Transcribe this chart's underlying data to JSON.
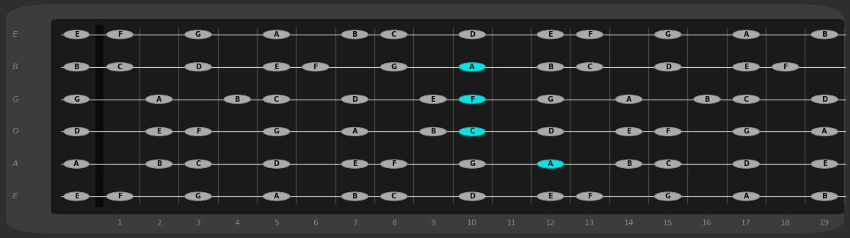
{
  "figsize": [
    12.01,
    3.37
  ],
  "dpi": 100,
  "bg_outer": "#2e2e2e",
  "bg_inner": "#252525",
  "fret_color": "#444444",
  "string_color": "#cccccc",
  "nut_color": "#0a0a0a",
  "dot_fill": "#aaaaaa",
  "dot_edge": "#888888",
  "cyan_fill": "#00e5e5",
  "cyan_edge": "#00aaaa",
  "text_color": "#111111",
  "label_color": "#888888",
  "n_frets": 19,
  "n_strings": 6,
  "string_names_left": [
    "E",
    "B",
    "G",
    "D",
    "A",
    "E"
  ],
  "strings_data": [
    [
      "E",
      "F",
      "",
      "G",
      "",
      "A",
      "",
      "B",
      "C",
      "",
      "D",
      "",
      "E",
      "F",
      "",
      "G",
      "",
      "A",
      "",
      "B"
    ],
    [
      "B",
      "C",
      "",
      "D",
      "",
      "E",
      "F",
      "",
      "G",
      "",
      "A",
      "",
      "B",
      "C",
      "",
      "D",
      "",
      "E",
      "F",
      ""
    ],
    [
      "G",
      "",
      "A",
      "",
      "B",
      "C",
      "",
      "D",
      "",
      "E",
      "F",
      "",
      "G",
      "",
      "A",
      "",
      "B",
      "C",
      "",
      "D"
    ],
    [
      "D",
      "",
      "E",
      "F",
      "",
      "G",
      "",
      "A",
      "",
      "B",
      "C",
      "",
      "D",
      "",
      "E",
      "F",
      "",
      "G",
      "",
      "A"
    ],
    [
      "A",
      "",
      "B",
      "C",
      "",
      "D",
      "",
      "E",
      "F",
      "",
      "G",
      "",
      "A",
      "",
      "B",
      "C",
      "",
      "D",
      "",
      "E"
    ],
    [
      "E",
      "F",
      "",
      "G",
      "",
      "A",
      "",
      "B",
      "C",
      "",
      "D",
      "",
      "E",
      "F",
      "",
      "G",
      "",
      "A",
      "",
      "B"
    ]
  ],
  "cyan_notes": [
    {
      "string_idx": 1,
      "fret": 10,
      "label": "A"
    },
    {
      "string_idx": 2,
      "fret": 10,
      "label": "F"
    },
    {
      "string_idx": 3,
      "fret": 10,
      "label": "C"
    },
    {
      "string_idx": 4,
      "fret": 12,
      "label": "A"
    }
  ],
  "fret_numbers": [
    1,
    2,
    3,
    4,
    5,
    6,
    7,
    8,
    9,
    10,
    11,
    12,
    13,
    14,
    15,
    16,
    17,
    18,
    19
  ]
}
